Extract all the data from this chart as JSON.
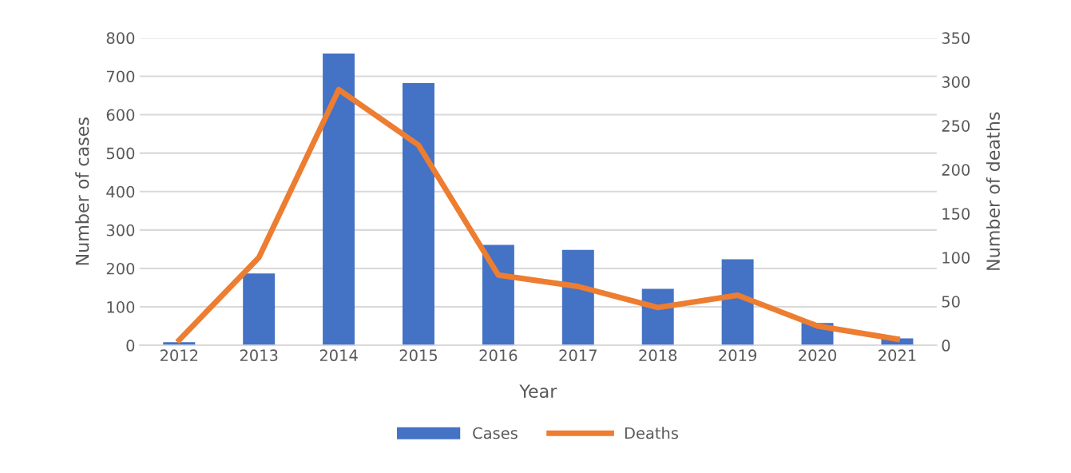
{
  "chart_data": {
    "type": "bar",
    "xlabel": "Year",
    "ylabel": "Number of cases",
    "y2label": "Number of deaths",
    "categories": [
      "2012",
      "2013",
      "2014",
      "2015",
      "2016",
      "2017",
      "2018",
      "2019",
      "2020",
      "2021"
    ],
    "series": [
      {
        "name": "Cases",
        "color": "#4472c4",
        "values": [
          8,
          187,
          759,
          682,
          261,
          248,
          147,
          224,
          58,
          18
        ]
      },
      {
        "name": "Deaths",
        "type": "line",
        "axis": "y2",
        "color": "#ed7d31",
        "values": [
          6,
          100,
          291,
          228,
          80,
          67,
          43,
          57,
          22,
          7
        ]
      }
    ],
    "ylim": [
      0,
      800
    ],
    "yticks": [
      0,
      100,
      200,
      300,
      400,
      500,
      600,
      700,
      800
    ],
    "y2lim": [
      0,
      350
    ],
    "y2ticks": [
      0,
      50,
      100,
      150,
      200,
      250,
      300,
      350
    ],
    "grid": "y",
    "legend": "bottom",
    "marker": "none",
    "line_style": "solid"
  }
}
